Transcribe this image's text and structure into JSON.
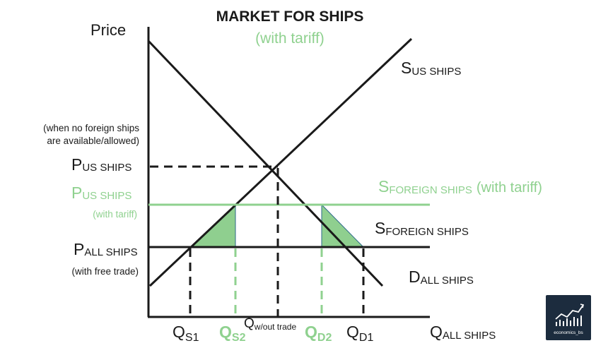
{
  "title": "MARKET FOR SHIPS",
  "subtitle": "(with tariff)",
  "y_axis_label": "Price",
  "supply_us": {
    "main": "S",
    "sub": "US SHIPS"
  },
  "demand": {
    "main": "D",
    "sub": "ALL SHIPS"
  },
  "supply_foreign": {
    "main": "S",
    "sub": "FOREIGN SHIPS"
  },
  "supply_foreign_tariff": {
    "main": "S",
    "sub": "FOREIGN SHIPS",
    "suffix": "(with tariff)"
  },
  "note_line1": "(when no foreign ships",
  "note_line2": "are available/allowed)",
  "p_us": {
    "main": "P",
    "sub": "US SHIPS"
  },
  "p_us_tariff": {
    "main": "P",
    "sub": "US SHIPS",
    "note": "(with tariff)"
  },
  "p_all": {
    "main": "P",
    "sub": "ALL SHIPS",
    "note": "(with free trade)"
  },
  "q_s1": {
    "main": "Q",
    "sub": "S1"
  },
  "q_s2": {
    "main": "Q",
    "sub": "S2"
  },
  "q_wout": {
    "main": "Q",
    "sub": "w/out trade"
  },
  "q_d2": {
    "main": "Q",
    "sub": "D2"
  },
  "q_d1": {
    "main": "Q",
    "sub": "D1"
  },
  "q_all": {
    "main": "Q",
    "sub": "ALL SHIPS"
  },
  "logo": {
    "text": "economics_bs"
  },
  "colors": {
    "black": "#1a1a1a",
    "green": "#8fd18f",
    "deadweight_fill": "#8fcf8f",
    "logo_bg": "#1c2c3e"
  }
}
